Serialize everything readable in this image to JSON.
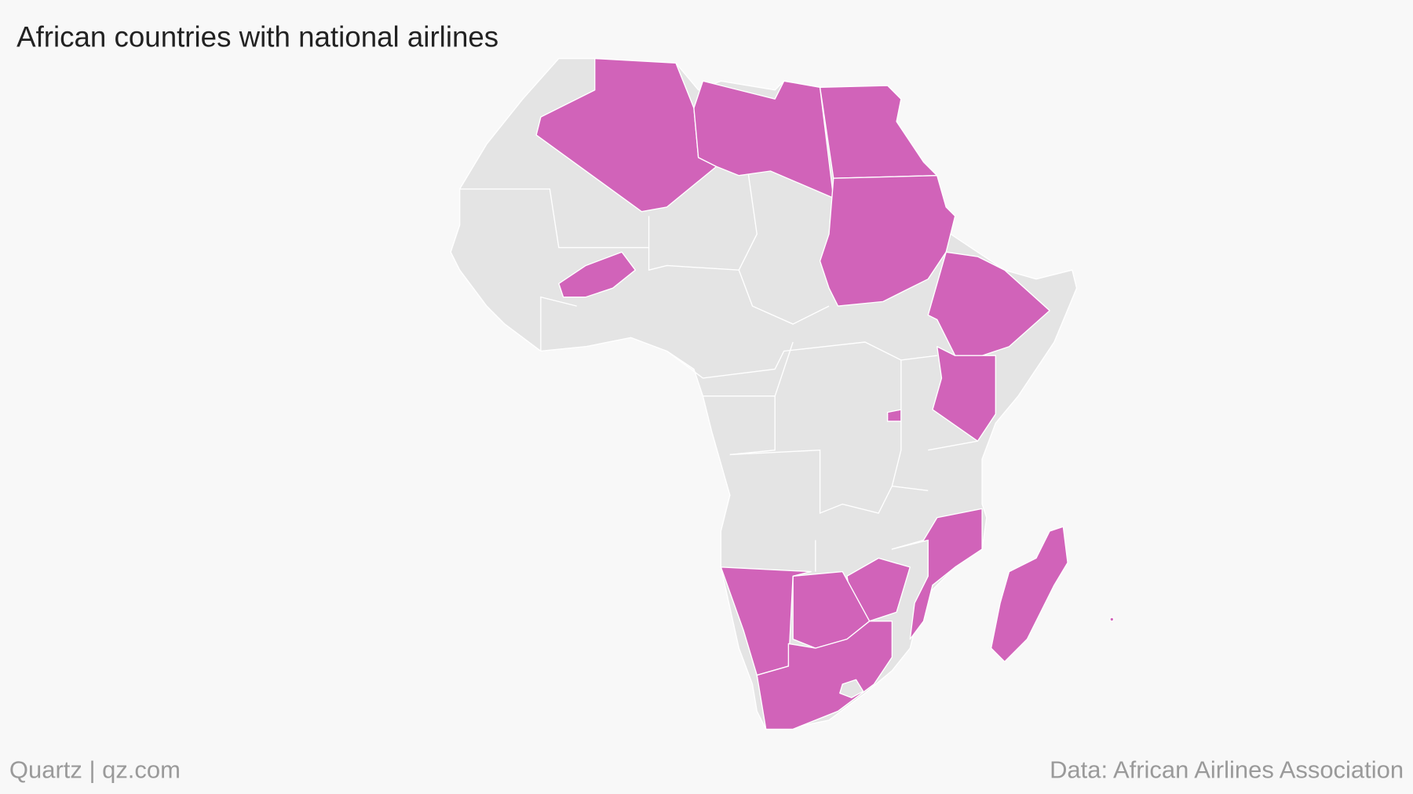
{
  "title": "African countries with national airlines",
  "footer": {
    "credit": "Quartz | qz.com",
    "source": "Data: African Airlines Association"
  }
}
